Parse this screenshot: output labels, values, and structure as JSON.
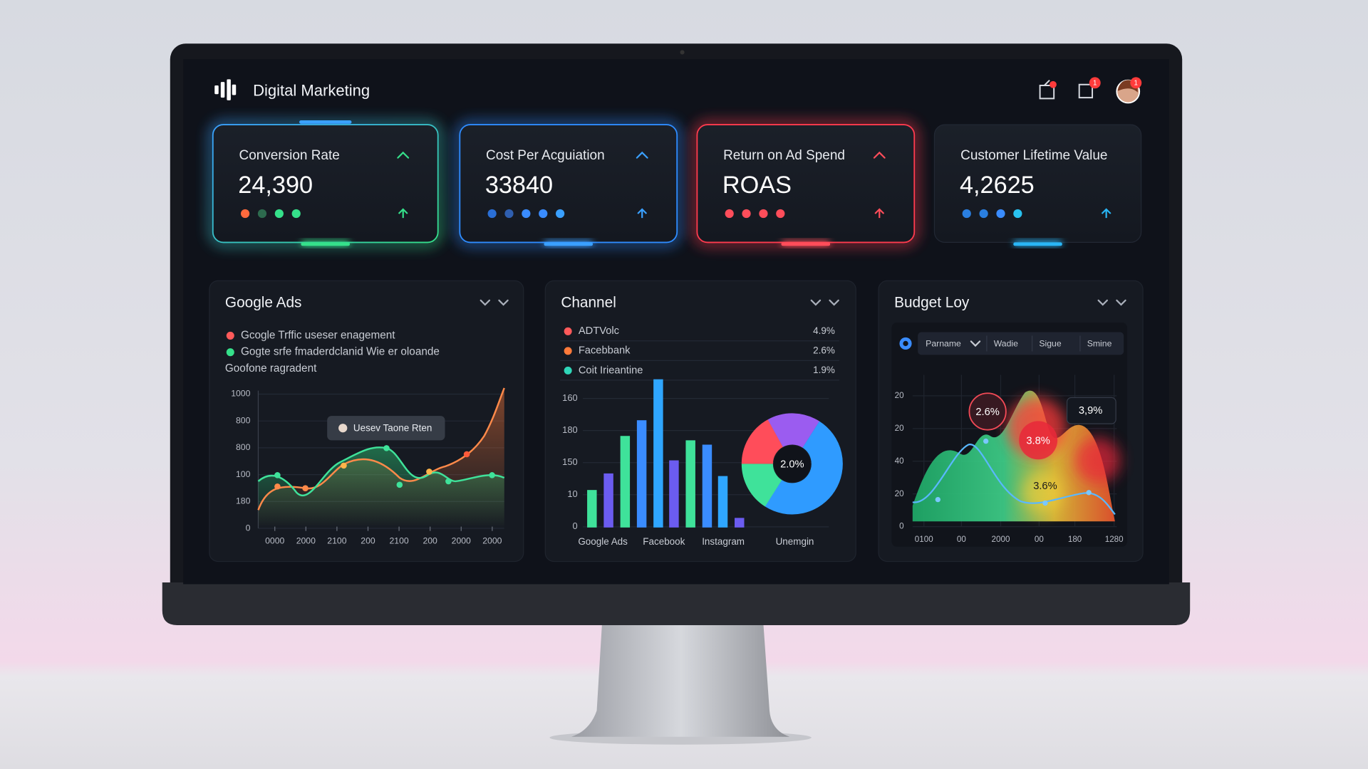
{
  "header": {
    "title": "Digital Marketing",
    "badges": [
      "1",
      "1"
    ]
  },
  "kpis": [
    {
      "label": "Conversion Rate",
      "value": "24,390"
    },
    {
      "label": "Cost Per Acguiation",
      "value": "33840"
    },
    {
      "label": "Return on Ad Spend",
      "value": "ROAS"
    },
    {
      "label": "Customer Lifetime Value",
      "value": "4,2625"
    }
  ],
  "google_ads": {
    "title": "Google Ads",
    "legend": [
      "Gcogle Trffic useser enagement",
      "Gogte srfe fmaderdclanid Wie er oloande",
      "Goofone ragradent"
    ],
    "y_labels": [
      "1000",
      "800",
      "800",
      "100",
      "180",
      "0"
    ],
    "x_labels": [
      "0000",
      "2000",
      "2100",
      "200",
      "2100",
      "200",
      "2000",
      "2000"
    ],
    "tooltip": "Uesev Taone Rten"
  },
  "channel": {
    "title": "Channel",
    "rows": [
      {
        "name": "ADTVolc",
        "value": "4.9%"
      },
      {
        "name": "Facebbank",
        "value": "2.6%"
      },
      {
        "name": "Coit Irieantine",
        "value": "1.9%"
      }
    ],
    "y_labels": [
      "160",
      "180",
      "150",
      "10",
      "0"
    ],
    "x_labels": [
      "Google Ads",
      "Facebook",
      "Instagram",
      "Unemgin"
    ],
    "donut_label": "2.0%"
  },
  "budget": {
    "title": "Budget Loy",
    "tabs": [
      "Parname",
      "Wadie",
      "Sigue",
      "Smine"
    ],
    "y_labels": [
      "20",
      "20",
      "40",
      "20",
      "0"
    ],
    "x_labels": [
      "0100",
      "00",
      "2000",
      "00",
      "180",
      "1280"
    ],
    "callouts": [
      "2.6%",
      "3.8%",
      "3,9%",
      "3.6%"
    ]
  }
}
